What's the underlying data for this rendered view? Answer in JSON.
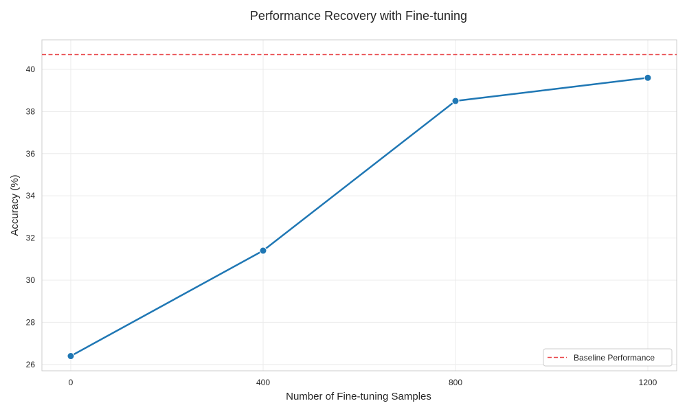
{
  "chart_data": {
    "type": "line",
    "title": "Performance Recovery with Fine-tuning",
    "xlabel": "Number of Fine-tuning Samples",
    "ylabel": "Accuracy (%)",
    "x": [
      0,
      400,
      800,
      1200
    ],
    "series": [
      {
        "values": [
          26.4,
          31.4,
          38.5,
          39.6
        ],
        "color": "#1f77b4",
        "marker": "circle"
      }
    ],
    "reference_lines": [
      {
        "name": "Baseline Performance",
        "y": 40.7,
        "color": "#e8474a",
        "style": "dashed"
      }
    ],
    "xticks": [
      0,
      400,
      800,
      1200
    ],
    "yticks": [
      26,
      28,
      30,
      32,
      34,
      36,
      38,
      40
    ],
    "xlim": [
      -60,
      1260
    ],
    "ylim": [
      25.7,
      41.4
    ],
    "grid": true,
    "legend_position": "lower-right"
  }
}
